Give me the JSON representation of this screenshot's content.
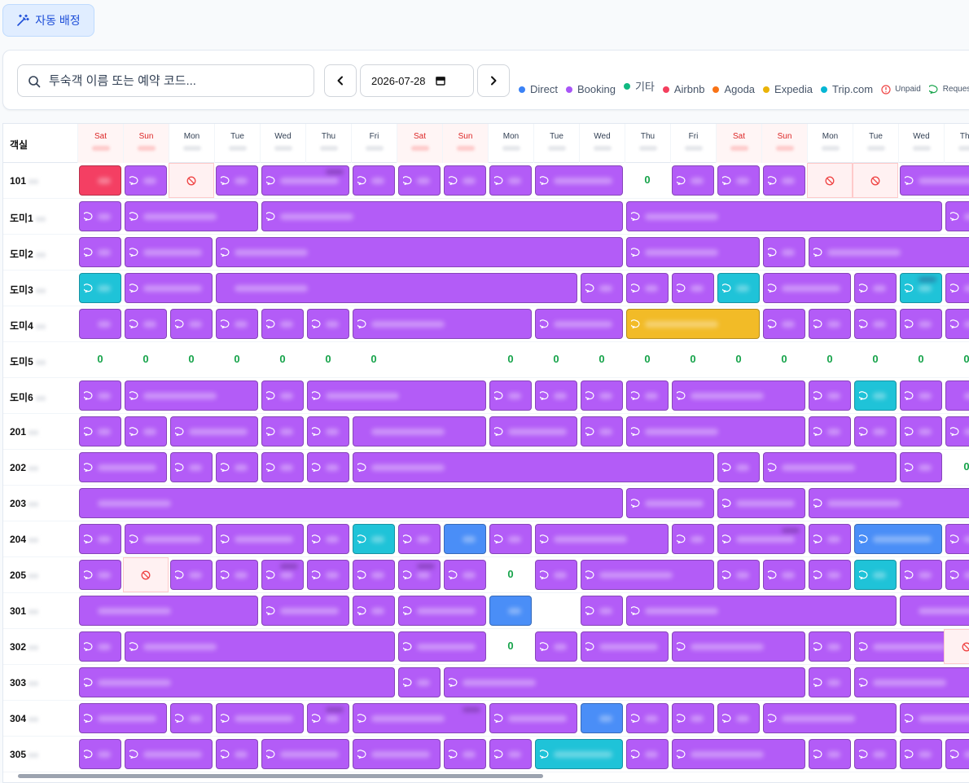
{
  "top": {
    "auto_assign_label": "자동 배정"
  },
  "toolbar": {
    "search_placeholder": "투숙객 이름 또는 예약 코드...",
    "date_value": "2026-07-28",
    "legend": [
      {
        "label": "Direct",
        "color": "#3b82f6",
        "kind": "dot"
      },
      {
        "label": "Booking",
        "color": "#a855f7",
        "kind": "dot"
      },
      {
        "label": "기타",
        "color": "#10b981",
        "kind": "dot"
      },
      {
        "label": "Airbnb",
        "color": "#f43f5e",
        "kind": "dot"
      },
      {
        "label": "Agoda",
        "color": "#f97316",
        "kind": "dot"
      },
      {
        "label": "Expedia",
        "color": "#eab308",
        "kind": "dot"
      },
      {
        "label": "Trip.com",
        "color": "#06b6d4",
        "kind": "dot"
      },
      {
        "label": "Unpaid",
        "color": "#ef4444",
        "kind": "alert"
      },
      {
        "label": "Request",
        "color": "#16a34a",
        "kind": "bubble"
      }
    ]
  },
  "grid": {
    "room_header": "객실",
    "days": [
      "Sat",
      "Sun",
      "Mon",
      "Tue",
      "Wed",
      "Thu",
      "Fri",
      "Sat",
      "Sun",
      "Mon",
      "Tue",
      "Wed",
      "Thu",
      "Fri",
      "Sat",
      "Sun",
      "Mon",
      "Tue",
      "Wed",
      "Thu"
    ],
    "vacant_mark": "0",
    "colors": {
      "P": "#b35cf7",
      "C": "#1fc3d8",
      "B": "#4a8ef7",
      "R": "#f43f63",
      "Y": "#f2bb27"
    },
    "rooms": [
      {
        "name": "101",
        "cells": [
          "b:0:1:R:0",
          "b:1:1:P",
          "x:2",
          "b:3:1:P",
          "b:4:2:P:1",
          "b:6:1:P",
          "b:7:1:P",
          "b:8:1:P",
          "b:9:1:P",
          "b:10:2:P",
          "v:12",
          "b:13:1:P",
          "b:14:1:P",
          "b:15:1:P",
          "x:16",
          "x:17",
          "b:18:2:P"
        ]
      },
      {
        "name": "도미1",
        "cells": [
          "b:0:1:P",
          "b:1:3:P",
          "b:4:8:P",
          "b:12:7:P",
          "b:19:1:P"
        ]
      },
      {
        "name": "도미2",
        "cells": [
          "b:0:1:P",
          "b:1:2:P",
          "b:3:9:P",
          "b:12:3:P",
          "b:15:1:P",
          "b:16:4:P"
        ]
      },
      {
        "name": "도미3",
        "cells": [
          "b:0:1:C",
          "b:1:2:P",
          "b:3:8:P:0",
          "b:11:1:P",
          "b:12:1:P",
          "b:13:1:P",
          "b:14:1:C",
          "b:15:2:P",
          "b:17:1:P",
          "b:18:1:C:1",
          "b:19:1:P"
        ]
      },
      {
        "name": "도미4",
        "cells": [
          "b:0:1:P:0",
          "b:1:1:P",
          "b:2:1:P",
          "b:3:1:P",
          "b:4:1:P",
          "b:5:1:P",
          "b:6:4:P",
          "b:10:2:P",
          "b:12:3:Y",
          "b:15:1:P",
          "b:16:1:P",
          "b:17:1:P",
          "b:18:1:P",
          "b:19:1:P"
        ]
      },
      {
        "name": "도미5",
        "cells": [
          "v:0",
          "v:1",
          "v:2",
          "v:3",
          "v:4",
          "v:5",
          "v:6",
          "v:9",
          "v:10",
          "v:11",
          "v:12",
          "v:13",
          "v:14",
          "v:15",
          "v:16",
          "v:17",
          "v:18",
          "v:19"
        ]
      },
      {
        "name": "도미6",
        "cells": [
          "b:0:1:P",
          "b:1:3:P",
          "b:4:1:P",
          "b:5:4:P",
          "b:9:1:P",
          "b:10:1:P",
          "b:11:1:P",
          "b:12:1:P",
          "b:13:3:P",
          "b:16:1:P",
          "b:17:1:C",
          "b:18:1:P",
          "b:19:1:P:0",
          "b:20:1:P"
        ]
      },
      {
        "name": "201",
        "cells": [
          "b:0:1:P",
          "b:1:1:P",
          "b:2:2:P",
          "b:4:1:P",
          "b:5:1:P",
          "b:6:3:P:0",
          "b:9:2:P",
          "b:11:1:P",
          "b:12:4:P",
          "b:16:1:P",
          "b:17:1:P",
          "b:18:1:P",
          "b:19:1:P"
        ]
      },
      {
        "name": "202",
        "cells": [
          "b:0:2:P",
          "b:2:1:P",
          "b:3:1:P",
          "b:4:1:P",
          "b:5:1:P",
          "b:6:8:P",
          "b:14:1:P",
          "b:15:3:P",
          "b:18:1:P",
          "v:19"
        ]
      },
      {
        "name": "203",
        "cells": [
          "b:0:12:P:0",
          "b:12:2:P",
          "b:14:2:P",
          "b:16:4:P"
        ]
      },
      {
        "name": "204",
        "cells": [
          "b:0:1:P",
          "b:1:2:P",
          "b:3:2:P",
          "b:5:1:P",
          "b:6:1:C",
          "b:7:1:P",
          "b:8:1:B:0",
          "b:9:1:P",
          "b:10:3:P",
          "b:13:1:P",
          "b:14:2:P:1",
          "b:16:1:P",
          "b:17:2:B",
          "b:19:1:P"
        ]
      },
      {
        "name": "205",
        "cells": [
          "b:0:1:P",
          "x:1",
          "b:2:1:P",
          "b:3:1:P",
          "b:4:1:P:1",
          "b:5:1:P",
          "b:6:1:P",
          "b:7:1:P:1",
          "b:8:1:P",
          "v:9",
          "b:10:1:P",
          "b:11:3:P",
          "b:14:1:P",
          "b:15:1:P",
          "b:16:1:P",
          "b:17:1:C",
          "b:18:1:P",
          "b:19:1:P",
          "b:20:1:P"
        ]
      },
      {
        "name": "301",
        "cells": [
          "b:0:4:P:0",
          "b:4:2:P",
          "b:6:1:P",
          "b:7:2:P",
          "b:9:1:B:0",
          "b:11:1:P",
          "b:12:6:P",
          "b:18:3:P:0"
        ]
      },
      {
        "name": "302",
        "cells": [
          "b:0:1:P",
          "b:1:6:P",
          "b:7:2:P",
          "v:9",
          "b:10:1:P",
          "b:11:2:P",
          "b:13:3:P",
          "b:16:1:P",
          "b:17:3:P",
          "x:19"
        ]
      },
      {
        "name": "303",
        "cells": [
          "b:0:7:P",
          "b:7:1:P",
          "b:8:8:P",
          "b:16:1:P",
          "b:17:4:P"
        ]
      },
      {
        "name": "304",
        "cells": [
          "b:0:2:P",
          "b:2:1:P",
          "b:3:2:P",
          "b:5:1:P:1",
          "b:6:3:P:1",
          "b:9:2:P",
          "b:11:1:B:0",
          "b:12:1:P",
          "b:13:1:P",
          "b:14:1:P",
          "b:15:3:P",
          "b:18:2:P"
        ]
      },
      {
        "name": "305",
        "cells": [
          "b:0:1:P",
          "b:1:2:P",
          "b:3:1:P",
          "b:4:2:P",
          "b:6:2:P",
          "b:8:1:P",
          "b:9:1:P",
          "b:10:2:C",
          "b:12:1:P",
          "b:13:3:P",
          "b:16:1:P",
          "b:17:1:P",
          "b:18:1:P",
          "b:19:1:P"
        ]
      }
    ]
  }
}
